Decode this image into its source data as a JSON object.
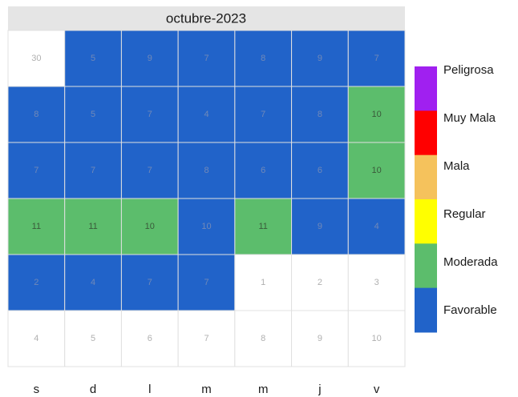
{
  "chart_data": {
    "type": "calendar",
    "title": "octubre-2023",
    "weekdays": [
      "s",
      "d",
      "l",
      "m",
      "m",
      "j",
      "v"
    ],
    "legend": [
      {
        "name": "Peligrosa",
        "color": "#a020f0"
      },
      {
        "name": "Muy Mala",
        "color": "#ff0000"
      },
      {
        "name": "Mala",
        "color": "#f5c25c"
      },
      {
        "name": "Regular",
        "color": "#ffff00"
      },
      {
        "name": "Moderada",
        "color": "#5cbd6c"
      },
      {
        "name": "Favorable",
        "color": "#2163c9"
      }
    ],
    "cells": [
      [
        {
          "value": 30,
          "level": null
        },
        {
          "value": 5,
          "level": "Favorable"
        },
        {
          "value": 9,
          "level": "Favorable"
        },
        {
          "value": 7,
          "level": "Favorable"
        },
        {
          "value": 8,
          "level": "Favorable"
        },
        {
          "value": 9,
          "level": "Favorable"
        },
        {
          "value": 7,
          "level": "Favorable"
        }
      ],
      [
        {
          "value": 8,
          "level": "Favorable"
        },
        {
          "value": 5,
          "level": "Favorable"
        },
        {
          "value": 7,
          "level": "Favorable"
        },
        {
          "value": 4,
          "level": "Favorable"
        },
        {
          "value": 7,
          "level": "Favorable"
        },
        {
          "value": 8,
          "level": "Favorable"
        },
        {
          "value": 10,
          "level": "Moderada"
        }
      ],
      [
        {
          "value": 7,
          "level": "Favorable"
        },
        {
          "value": 7,
          "level": "Favorable"
        },
        {
          "value": 7,
          "level": "Favorable"
        },
        {
          "value": 8,
          "level": "Favorable"
        },
        {
          "value": 6,
          "level": "Favorable"
        },
        {
          "value": 6,
          "level": "Favorable"
        },
        {
          "value": 10,
          "level": "Moderada"
        }
      ],
      [
        {
          "value": 11,
          "level": "Moderada"
        },
        {
          "value": 11,
          "level": "Moderada"
        },
        {
          "value": 10,
          "level": "Moderada"
        },
        {
          "value": 10,
          "level": "Favorable"
        },
        {
          "value": 11,
          "level": "Moderada"
        },
        {
          "value": 9,
          "level": "Favorable"
        },
        {
          "value": 4,
          "level": "Favorable"
        }
      ],
      [
        {
          "value": 2,
          "level": "Favorable"
        },
        {
          "value": 4,
          "level": "Favorable"
        },
        {
          "value": 7,
          "level": "Favorable"
        },
        {
          "value": 7,
          "level": "Favorable"
        },
        {
          "value": 1,
          "level": null
        },
        {
          "value": 2,
          "level": null
        },
        {
          "value": 3,
          "level": null
        }
      ],
      [
        {
          "value": 4,
          "level": null
        },
        {
          "value": 5,
          "level": null
        },
        {
          "value": 6,
          "level": null
        },
        {
          "value": 7,
          "level": null
        },
        {
          "value": 8,
          "level": null
        },
        {
          "value": 9,
          "level": null
        },
        {
          "value": 10,
          "level": null
        }
      ]
    ]
  }
}
